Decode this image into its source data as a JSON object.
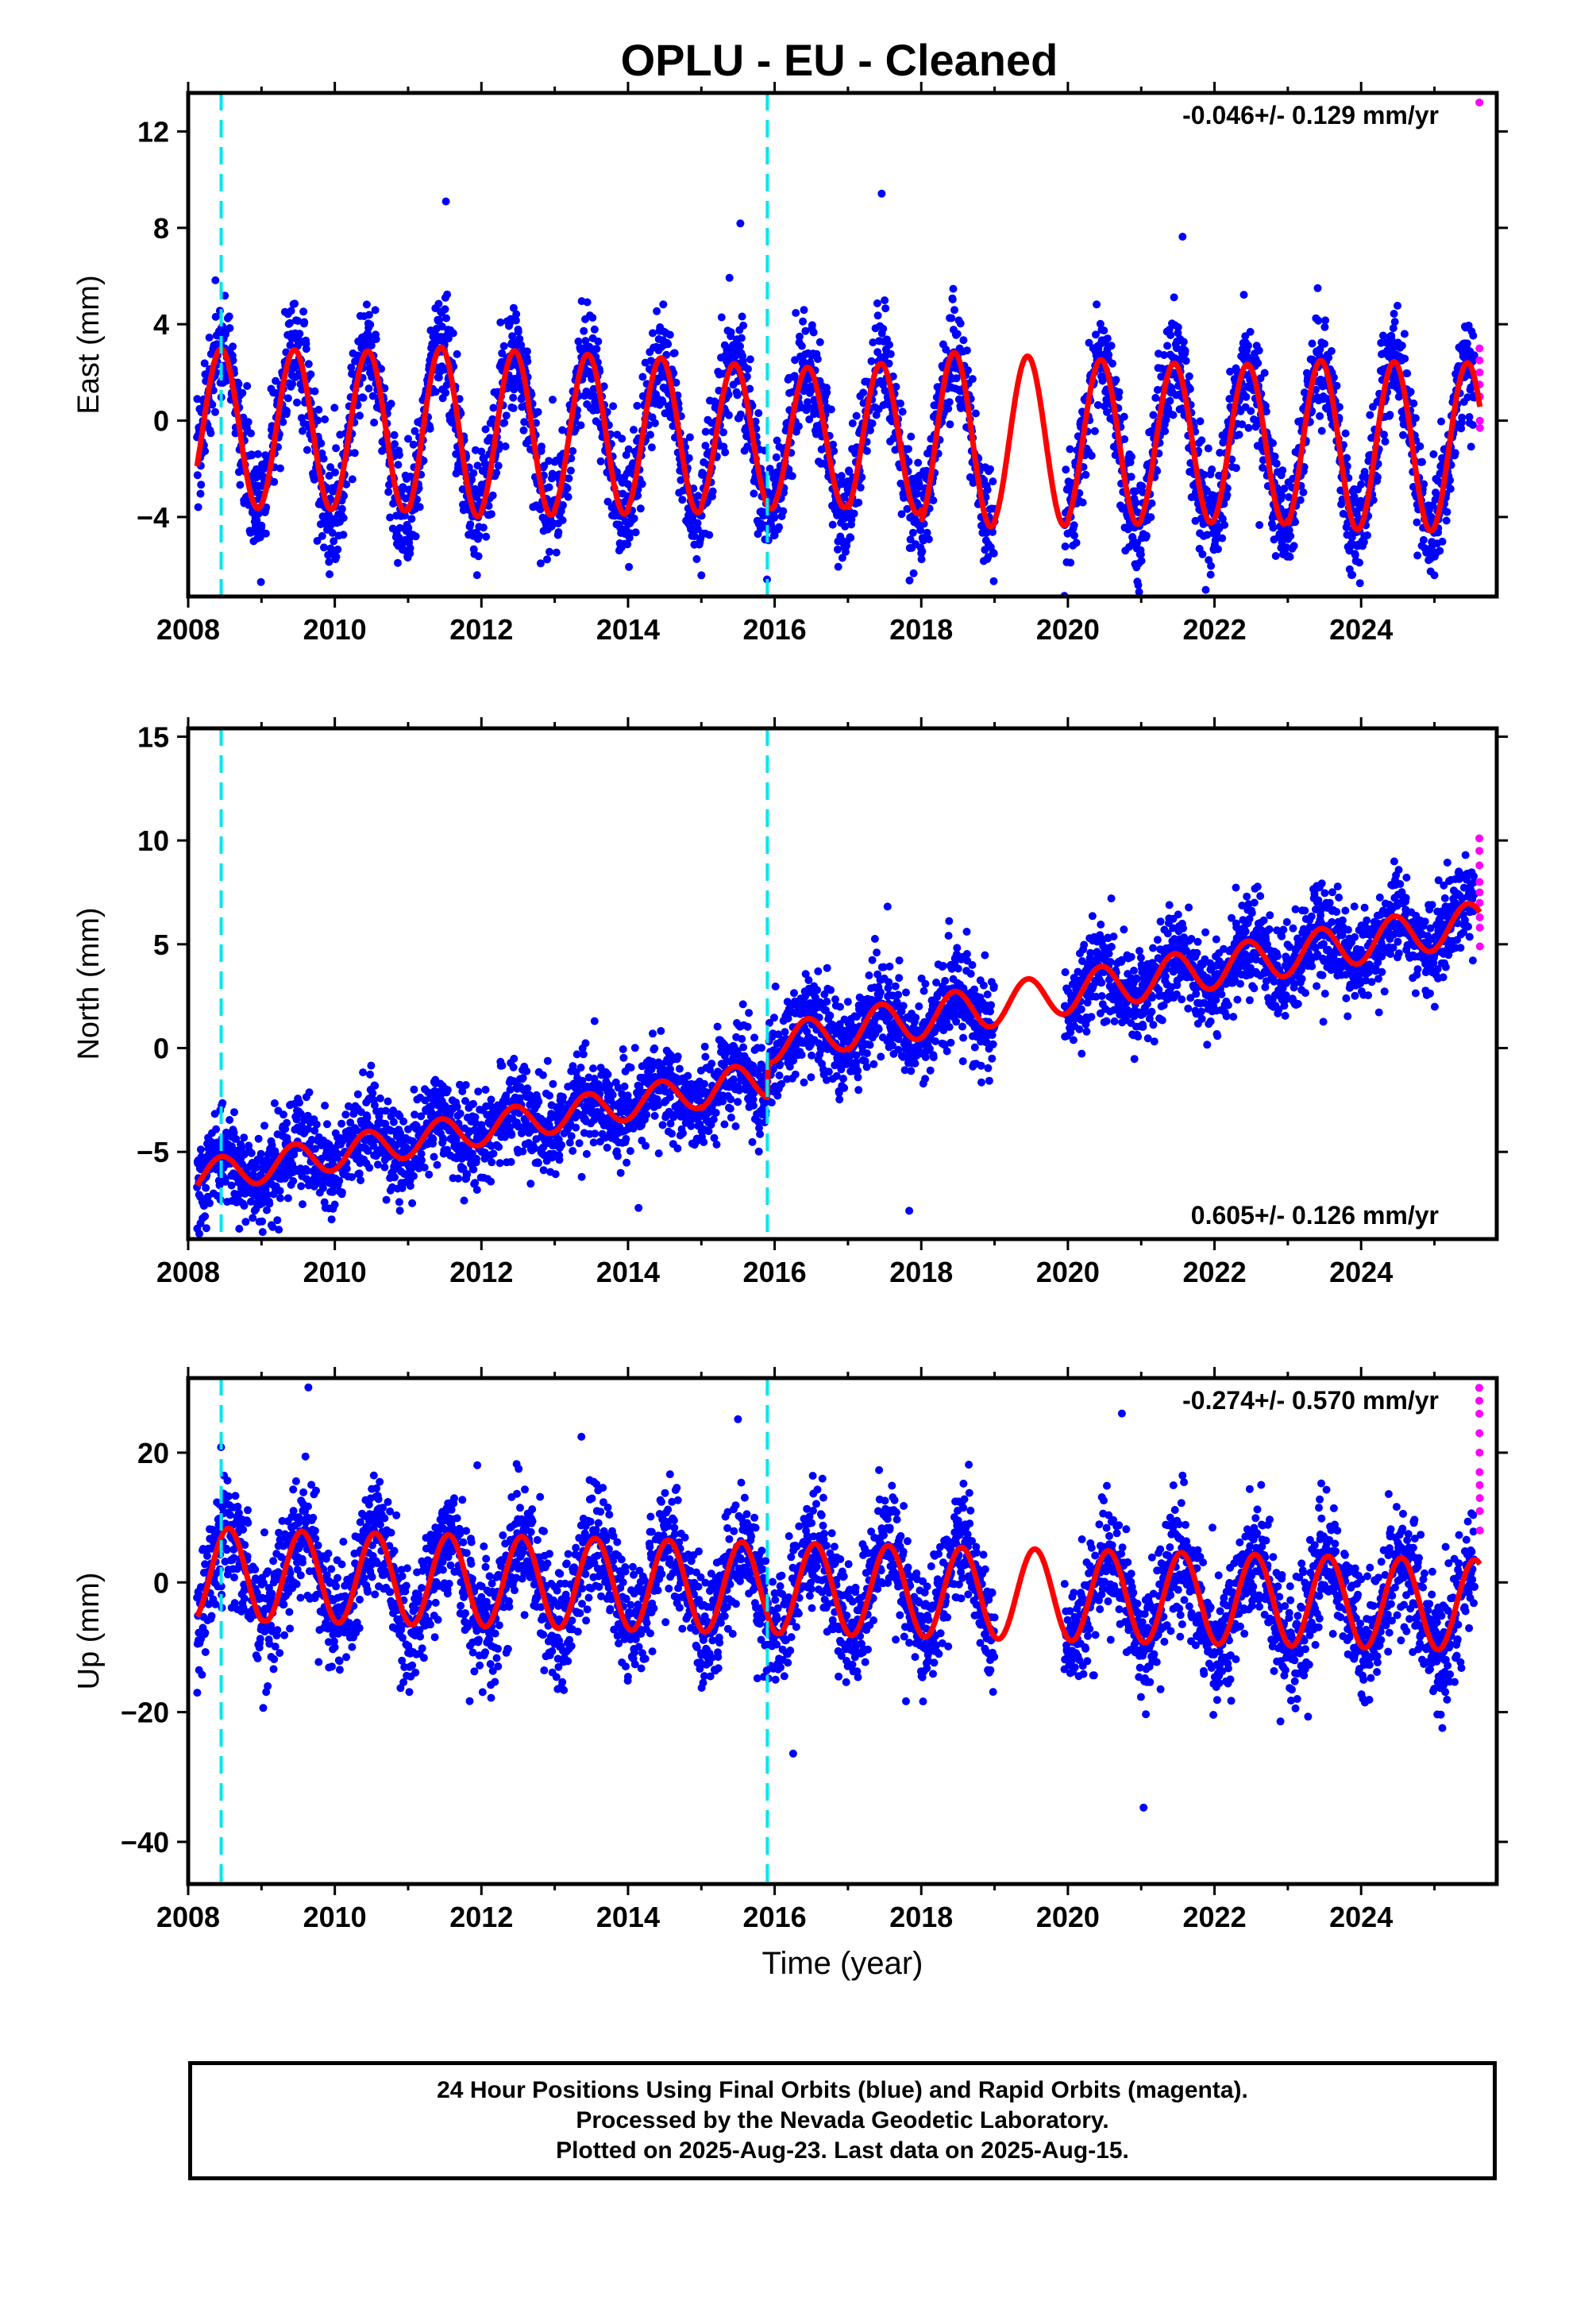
{
  "chart_data": {
    "type": "scatter",
    "title": "OPLU  - EU - Cleaned",
    "xlabel": "Time (year)",
    "xlim": [
      2008.0,
      2025.85
    ],
    "x_ticks": [
      2008,
      2010,
      2012,
      2014,
      2016,
      2018,
      2020,
      2022,
      2024
    ],
    "data_span": [
      2008.12,
      2025.62
    ],
    "rapid_span": [
      2025.55,
      2025.62
    ],
    "gap": [
      2019.0,
      2019.95
    ],
    "events": [
      2008.45,
      2015.9
    ],
    "colors": {
      "final": "#0000ff",
      "rapid": "#ff00ff",
      "fit": "#ff0000",
      "event": "#00e5ee"
    },
    "panels": [
      {
        "ylabel": "East (mm)",
        "ylim": [
          -7.3,
          13.6
        ],
        "y_ticks": [
          -4,
          0,
          4,
          8,
          12
        ],
        "y_tick_labels": [
          "−4",
          "0",
          "4",
          "8",
          "12"
        ],
        "rate_text": "-0.046+/- 0.129 mm/yr",
        "rate_position": "top-right",
        "trend": {
          "rate_mm_per_yr": -0.046,
          "value_at_2008": -0.3
        },
        "seasonal_amplitude": [
          3.3,
          3.3,
          3.3,
          3.5,
          3.4,
          3.3,
          3.2,
          3.0,
          2.9,
          3.1,
          3.6,
          3.5,
          3.4,
          3.3,
          3.3,
          3.5,
          3.5,
          3.5,
          3.3
        ],
        "annual_peak_phase": 0.45,
        "noise_sd": 1.1,
        "rapid_values": [
          13.2,
          3.0,
          2.5,
          2.0,
          1.5,
          1.0,
          0.0,
          -0.3
        ]
      },
      {
        "ylabel": "North (mm)",
        "ylim": [
          -9.2,
          15.4
        ],
        "y_ticks": [
          -5,
          0,
          5,
          10,
          15
        ],
        "y_tick_labels": [
          "−5",
          "0",
          "5",
          "10",
          "15"
        ],
        "rate_text": "0.605+/- 0.126 mm/yr",
        "rate_position": "bottom-right",
        "trend": {
          "rate_mm_per_yr": 0.605,
          "value_at_2008": -6.3,
          "offset_at_2015_9": 1.7
        },
        "seasonal_amplitude": [
          0.8,
          0.8,
          0.8,
          0.8,
          0.8,
          0.8,
          0.8,
          0.9,
          0.9,
          1.0,
          1.0,
          1.0,
          1.0,
          1.0,
          1.0,
          1.0,
          1.0,
          1.0,
          1.0
        ],
        "annual_peak_phase": 0.45,
        "noise_sd": 1.1,
        "rapid_values": [
          10.1,
          9.5,
          8.8,
          8.0,
          7.5,
          7.0,
          6.3,
          5.8,
          4.9
        ]
      },
      {
        "ylabel": "Up (mm)",
        "ylim": [
          -46.5,
          31.5
        ],
        "y_ticks": [
          -40,
          -20,
          0,
          20
        ],
        "y_tick_labels": [
          "−40",
          "−20",
          "0",
          "20"
        ],
        "rate_text": "-0.274+/- 0.570 mm/yr",
        "rate_position": "top-right",
        "trend": {
          "rate_mm_per_yr": -0.274,
          "value_at_2008": 1.3
        },
        "seasonal_amplitude": [
          7.2,
          7.0,
          7.0,
          7.0,
          7.0,
          7.0,
          7.0,
          7.0,
          7.0,
          7.0,
          7.0,
          7.0,
          7.0,
          7.0,
          7.0,
          7.0,
          7.0,
          7.0,
          7.0
        ],
        "annual_peak_phase": 0.55,
        "noise_sd": 4.5,
        "rapid_values": [
          30.0,
          28.0,
          26.0,
          23.0,
          20.0,
          17.0,
          15.0,
          13.0,
          11.0,
          8.0
        ]
      }
    ]
  },
  "footer": {
    "line1": "24 Hour Positions Using Final Orbits (blue) and Rapid Orbits (magenta).",
    "line2": "Processed by the Nevada Geodetic Laboratory.",
    "line3": "Plotted on 2025-Aug-23. Last data on 2025-Aug-15."
  }
}
